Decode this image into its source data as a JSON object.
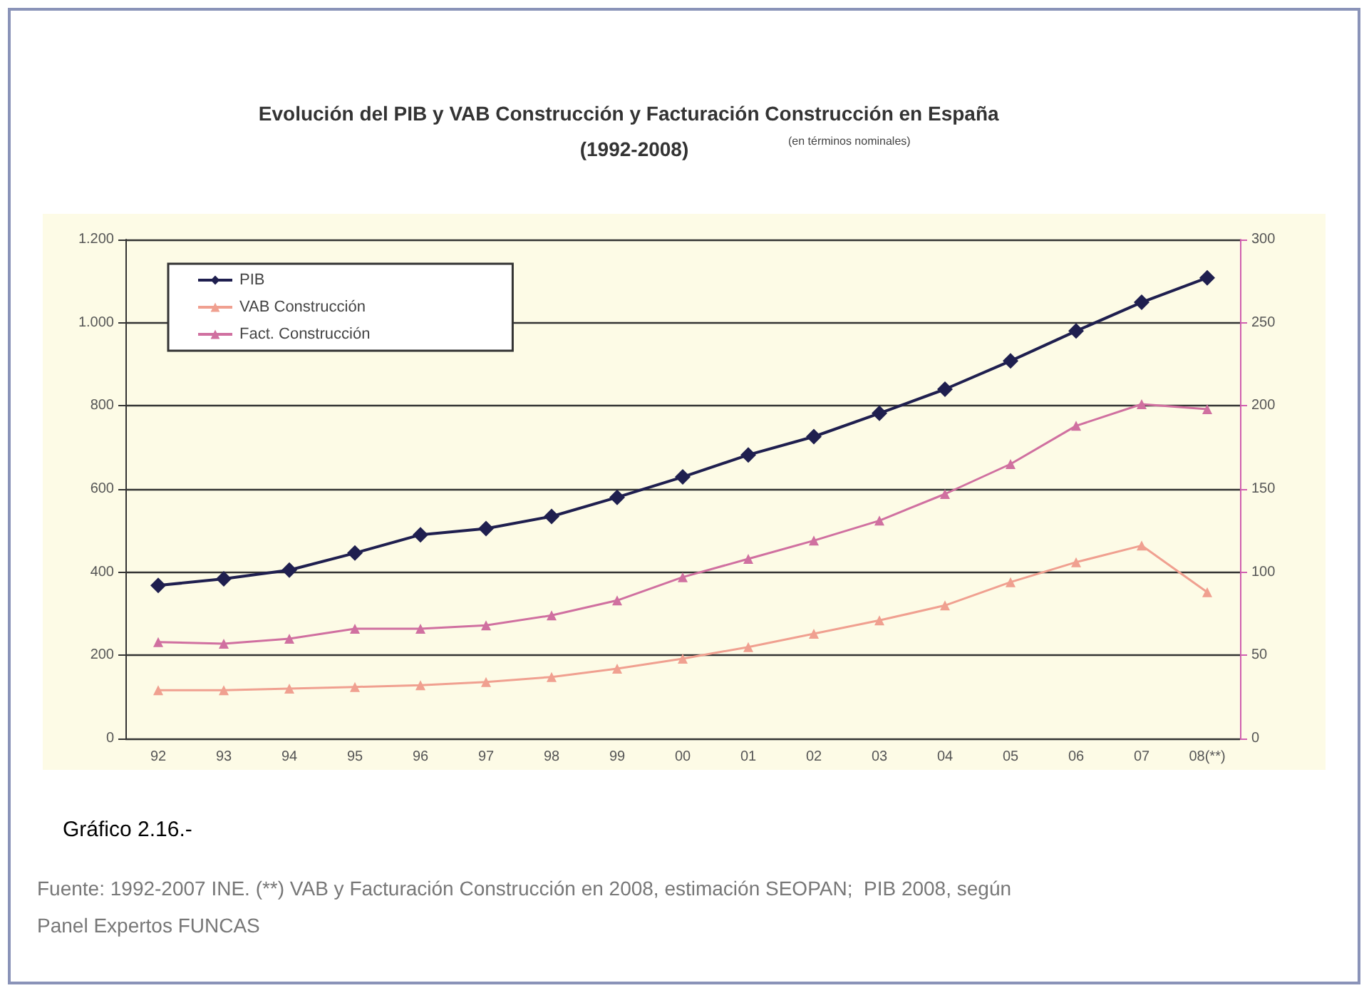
{
  "chart_data": {
    "type": "line",
    "title": "Evolución del PIB y VAB Construcción y Facturación Construcción en España  (1992-2008)",
    "subtitle": "(en términos nominales)",
    "categories": [
      "92",
      "93",
      "94",
      "95",
      "96",
      "97",
      "98",
      "99",
      "00",
      "01",
      "02",
      "03",
      "04",
      "05",
      "06",
      "07",
      "08(**)"
    ],
    "series": [
      {
        "name": "PIB",
        "color": "#1f1f4f",
        "marker": "diamond",
        "values": [
          368,
          384,
          405,
          446,
          490,
          505,
          534,
          580,
          629,
          682,
          726,
          782,
          840,
          908,
          980,
          1049,
          1108
        ]
      },
      {
        "name": "VAB Construcción",
        "color": "#f0a090",
        "marker": "triangle",
        "axis": "y2",
        "values": [
          29,
          29,
          30,
          31,
          32,
          34,
          37,
          42,
          48,
          55,
          63,
          71,
          80,
          94,
          106,
          116,
          88
        ]
      },
      {
        "name": "Fact. Construcción",
        "color": "#d070a0",
        "marker": "triangle",
        "axis": "y2",
        "values": [
          58,
          57,
          60,
          66,
          66,
          68,
          74,
          83,
          97,
          108,
          119,
          131,
          147,
          165,
          188,
          201,
          198
        ]
      }
    ],
    "ylim": [
      0,
      1200
    ],
    "yticks": [
      0,
      200,
      400,
      600,
      800,
      {
        "value": 1000,
        "label": "1.000"
      },
      {
        "value": 1200,
        "label": "1.200"
      }
    ],
    "y2lim": [
      0,
      300
    ],
    "y2ticks": [
      0,
      50,
      100,
      150,
      200,
      250,
      300
    ],
    "grid": "y",
    "legend": "top left",
    "line_style": "solid",
    "annotations": [
      "Gráfico 2.16.-",
      "Fuente: 1992-2007 INE. (**) VAB y Facturación Construcción en 2008, estimación SEOPAN;  PIB 2008, según Panel Expertos FUNCAS"
    ]
  }
}
